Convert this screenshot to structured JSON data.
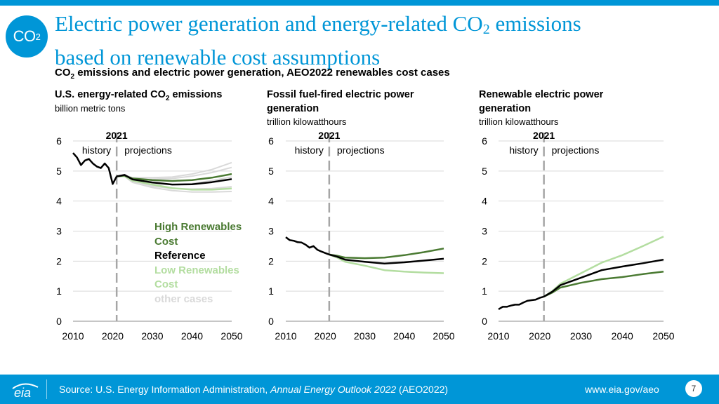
{
  "header": {
    "badge_main": "CO",
    "badge_sub": "2",
    "title_line1_pre": "Electric power generation and energy-related CO",
    "title_line1_sub": "2",
    "title_line1_post": " emissions",
    "title_line2": "based on renewable cost assumptions",
    "subtitle_pre": "CO",
    "subtitle_sub": "2",
    "subtitle_post": " emissions and electric power generation, AEO2022 renewables cost cases"
  },
  "panels": [
    {
      "title_pre": "U.S. energy-related CO",
      "title_sub": "2",
      "title_post": " emissions",
      "unit": "billion metric tons"
    },
    {
      "title_line1": "Fossil fuel-fired electric power",
      "title_line2": "generation",
      "unit": "trillion kilowatthours"
    },
    {
      "title_line1": "Renewable electric power",
      "title_line2": "generation",
      "unit": "trillion kilowatthours"
    }
  ],
  "legend": {
    "high_line1": "High Renewables",
    "high_line2": "Cost",
    "reference": "Reference",
    "low_line1": "Low Renewables",
    "low_line2": "Cost",
    "other": "other cases"
  },
  "colors": {
    "high": "#4a7a32",
    "reference": "#000000",
    "low": "#b3dda0",
    "other": "#d9d9d9",
    "divider": "#a6a6a6",
    "accent": "#0096d7"
  },
  "chart_data": [
    {
      "type": "line",
      "title": "U.S. energy-related CO2 emissions",
      "ylabel": "billion metric tons",
      "xlim": [
        2010,
        2050
      ],
      "ylim": [
        0,
        6
      ],
      "x_ticks": [
        "2010",
        "2020",
        "2030",
        "2040",
        "2050"
      ],
      "y_ticks": [
        "0",
        "1",
        "2",
        "3",
        "4",
        "5",
        "6"
      ],
      "annotations": {
        "year": "2021",
        "left": "history",
        "right": "projections"
      },
      "history": {
        "name": "",
        "x": [
          2010,
          2011,
          2012,
          2013,
          2014,
          2015,
          2016,
          2017,
          2018,
          2019,
          2020,
          2021
        ],
        "values": [
          5.6,
          5.45,
          5.2,
          5.35,
          5.4,
          5.25,
          5.15,
          5.1,
          5.25,
          5.1,
          4.57,
          4.82
        ]
      },
      "series": [
        {
          "name": "High Renewables Cost",
          "x": [
            2021,
            2023,
            2025,
            2030,
            2035,
            2040,
            2045,
            2050
          ],
          "values": [
            4.82,
            4.85,
            4.75,
            4.7,
            4.67,
            4.7,
            4.78,
            4.9
          ]
        },
        {
          "name": "Reference",
          "x": [
            2021,
            2023,
            2025,
            2030,
            2035,
            2040,
            2045,
            2050
          ],
          "values": [
            4.82,
            4.87,
            4.72,
            4.62,
            4.55,
            4.56,
            4.63,
            4.73
          ]
        },
        {
          "name": "Low Renewables Cost",
          "x": [
            2021,
            2023,
            2025,
            2030,
            2035,
            2040,
            2045,
            2050
          ],
          "values": [
            4.82,
            4.83,
            4.68,
            4.55,
            4.43,
            4.38,
            4.38,
            4.42
          ]
        }
      ],
      "other_cases": [
        [
          4.82,
          4.86,
          4.78,
          4.78,
          4.8,
          4.9,
          5.05,
          5.28
        ],
        [
          4.82,
          4.86,
          4.75,
          4.73,
          4.75,
          4.83,
          4.95,
          5.12
        ],
        [
          4.82,
          4.84,
          4.7,
          4.6,
          4.55,
          4.58,
          4.68,
          4.8
        ],
        [
          4.82,
          4.83,
          4.67,
          4.5,
          4.42,
          4.4,
          4.42,
          4.48
        ],
        [
          4.82,
          4.82,
          4.62,
          4.45,
          4.35,
          4.3,
          4.3,
          4.32
        ]
      ]
    },
    {
      "type": "line",
      "title": "Fossil fuel-fired electric power generation",
      "ylabel": "trillion kilowatthours",
      "xlim": [
        2010,
        2050
      ],
      "ylim": [
        0,
        6
      ],
      "x_ticks": [
        "2010",
        "2020",
        "2030",
        "2040",
        "2050"
      ],
      "y_ticks": [
        "0",
        "1",
        "2",
        "3",
        "4",
        "5",
        "6"
      ],
      "annotations": {
        "year": "2021",
        "left": "history",
        "right": "projections"
      },
      "history": {
        "name": "",
        "x": [
          2010,
          2011,
          2012,
          2013,
          2014,
          2015,
          2016,
          2017,
          2018,
          2019,
          2020,
          2021
        ],
        "values": [
          2.8,
          2.7,
          2.68,
          2.63,
          2.62,
          2.55,
          2.45,
          2.5,
          2.38,
          2.32,
          2.27,
          2.22
        ]
      },
      "series": [
        {
          "name": "High Renewables Cost",
          "x": [
            2021,
            2023,
            2025,
            2030,
            2035,
            2040,
            2045,
            2050
          ],
          "values": [
            2.22,
            2.18,
            2.12,
            2.1,
            2.12,
            2.2,
            2.3,
            2.42
          ]
        },
        {
          "name": "Reference",
          "x": [
            2021,
            2023,
            2025,
            2030,
            2035,
            2040,
            2045,
            2050
          ],
          "values": [
            2.22,
            2.15,
            2.05,
            1.98,
            1.92,
            1.96,
            2.02,
            2.08
          ]
        },
        {
          "name": "Low Renewables Cost",
          "x": [
            2021,
            2023,
            2025,
            2030,
            2035,
            2040,
            2045,
            2050
          ],
          "values": [
            2.22,
            2.12,
            1.98,
            1.85,
            1.7,
            1.65,
            1.62,
            1.6
          ]
        }
      ]
    },
    {
      "type": "line",
      "title": "Renewable electric power generation",
      "ylabel": "trillion kilowatthours",
      "xlim": [
        2010,
        2050
      ],
      "ylim": [
        0,
        6
      ],
      "x_ticks": [
        "2010",
        "2020",
        "2030",
        "2040",
        "2050"
      ],
      "y_ticks": [
        "0",
        "1",
        "2",
        "3",
        "4",
        "5",
        "6"
      ],
      "annotations": {
        "year": "2021",
        "left": "history",
        "right": "projections"
      },
      "history": {
        "name": "",
        "x": [
          2010,
          2011,
          2012,
          2013,
          2014,
          2015,
          2016,
          2017,
          2018,
          2019,
          2020,
          2021
        ],
        "values": [
          0.4,
          0.48,
          0.48,
          0.52,
          0.55,
          0.55,
          0.62,
          0.68,
          0.7,
          0.72,
          0.78,
          0.82
        ]
      },
      "series": [
        {
          "name": "High Renewables Cost",
          "x": [
            2021,
            2023,
            2025,
            2030,
            2035,
            2040,
            2045,
            2050
          ],
          "values": [
            0.82,
            0.95,
            1.12,
            1.28,
            1.4,
            1.47,
            1.57,
            1.65
          ]
        },
        {
          "name": "Reference",
          "x": [
            2021,
            2023,
            2025,
            2030,
            2035,
            2040,
            2045,
            2050
          ],
          "values": [
            0.82,
            0.98,
            1.2,
            1.45,
            1.7,
            1.82,
            1.93,
            2.05
          ]
        },
        {
          "name": "Low Renewables Cost",
          "x": [
            2021,
            2023,
            2025,
            2030,
            2035,
            2040,
            2045,
            2050
          ],
          "values": [
            0.82,
            1.0,
            1.25,
            1.6,
            1.95,
            2.2,
            2.5,
            2.82
          ]
        }
      ]
    }
  ],
  "footer": {
    "logo": "eia",
    "source_pre": "Source: U.S. Energy Information Administration, ",
    "source_italic": "Annual Energy Outlook 2022",
    "source_post": " (AEO2022)",
    "url": "www.eia.gov/aeo",
    "page": "7"
  }
}
